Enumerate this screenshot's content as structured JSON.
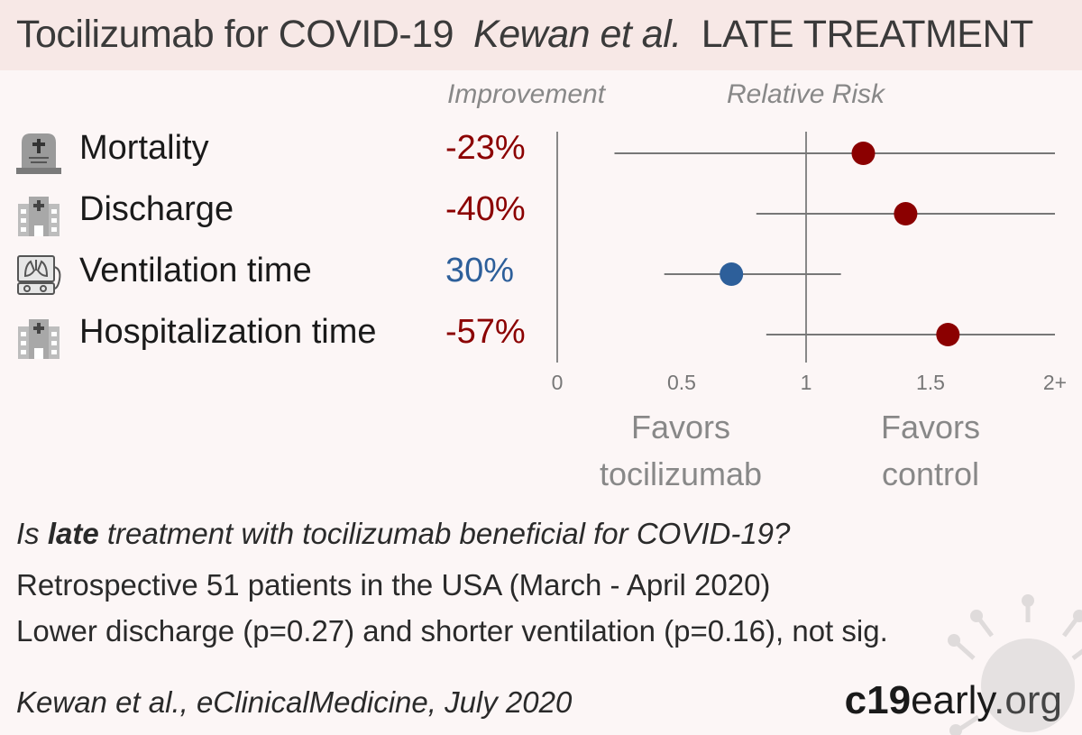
{
  "header": {
    "drug_title": "Tocilizumab for COVID-19",
    "authors": "Kewan et al.",
    "stage": "LATE TREATMENT"
  },
  "columns": {
    "improvement": "Improvement",
    "relative_risk": "Relative Risk"
  },
  "outcomes": [
    {
      "label": "Mortality",
      "improvement": "-23%",
      "icon": "tombstone-icon",
      "color": "#8b0000"
    },
    {
      "label": "Discharge",
      "improvement": "-40%",
      "icon": "hospital-icon",
      "color": "#8b0000"
    },
    {
      "label": "Ventilation time",
      "improvement": "30%",
      "icon": "ventilator-icon",
      "color": "#2d5f9a"
    },
    {
      "label": "Hospitalization time",
      "improvement": "-57%",
      "icon": "hospital-icon",
      "color": "#8b0000"
    }
  ],
  "favors": {
    "left": "Favors\ntocilizumab",
    "right": "Favors\ncontrol"
  },
  "summary": {
    "question_pre": "Is ",
    "question_bold": "late",
    "question_post": " treatment with tocilizumab beneficial for COVID-19?",
    "design": "Retrospective 51 patients in the USA (March - April 2020)",
    "result": "Lower discharge (p=0.27) and shorter ventilation (p=0.16), not sig."
  },
  "citation": "Kewan et al., eClinicalMedicine, July 2020",
  "brand": {
    "bold": "c19",
    "mid": "early",
    "end": ".org"
  },
  "chart_data": {
    "type": "scatter",
    "subtype": "forest",
    "xlabel": "Relative Risk",
    "x_ticks": [
      "0",
      "0.5",
      "1",
      "1.5",
      "2+"
    ],
    "x_tick_values": [
      0,
      0.5,
      1,
      1.5,
      2
    ],
    "xlim": [
      0,
      2
    ],
    "reference_line": 1,
    "series": [
      {
        "name": "Mortality",
        "rr": 1.23,
        "ci_low": 0.23,
        "ci_high": 2.0,
        "color": "#8b0000"
      },
      {
        "name": "Discharge",
        "rr": 1.4,
        "ci_low": 0.8,
        "ci_high": 2.0,
        "color": "#8b0000"
      },
      {
        "name": "Ventilation time",
        "rr": 0.7,
        "ci_low": 0.43,
        "ci_high": 1.14,
        "color": "#2d5f9a"
      },
      {
        "name": "Hospitalization time",
        "rr": 1.57,
        "ci_low": 0.84,
        "ci_high": 2.0,
        "color": "#8b0000"
      }
    ]
  }
}
